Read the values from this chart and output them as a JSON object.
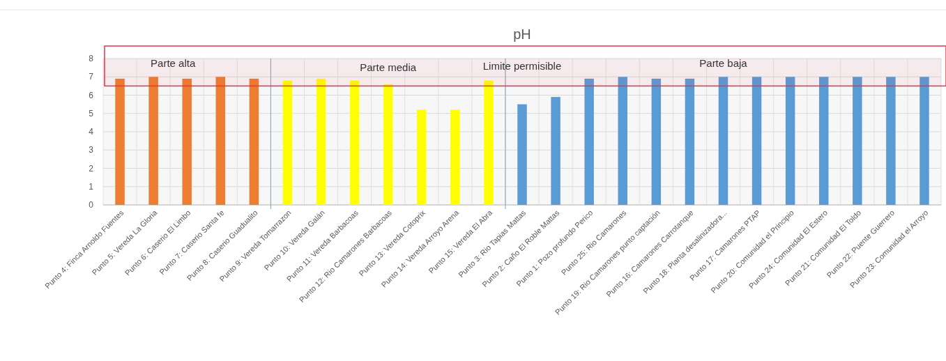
{
  "chart_data": {
    "type": "bar",
    "title": "pH",
    "categories": [
      "Punto 4: Finca Arnoldo Fuentes",
      "Punto 5: Vereda La Gloria",
      "Punto 6: Caserio El Limbo",
      "Punto 7: Caserio Santa fe",
      "Punto 8: Caserio Guadualito",
      "Punto 9: Vereda Tomarrazon",
      "Punto 10: Vereda Galán",
      "Punto 11: Vereda Barbacoas",
      "Punto 12: Rio Camarones Barbacoas",
      "Punto 13: Vereda Cotoprix",
      "Punto 14: Vereda Arroyo Arena",
      "Punto 15: Vereda El Abra",
      "Punto 3: Rio Tapias Mattas",
      "Punto 2: Caño El Roble Mattas",
      "Punto 1: Pozo profundo Perico",
      "Punto 25: Rio Camarones",
      "Punto 19: Rio Camarones punto captación",
      "Punto 16: Camarones Carrotanque",
      "Punto 18: Planta desalinizadora...",
      "Punto 17: Camarones PTAP",
      "Punto 20: Comunidad el Principio",
      "Punto 24: Comunidad El Estero",
      "Punto 21: Comunidad El Toldo",
      "Punto 22: Puente Guerrero",
      "Punto 23: Comunidad el Arroyo"
    ],
    "series": [
      {
        "color": "#ed7d31",
        "values": [
          6.9,
          7.0,
          6.9,
          7.0,
          6.9,
          null,
          null,
          null,
          null,
          null,
          null,
          null,
          null,
          null,
          null,
          null,
          null,
          null,
          null,
          null,
          null,
          null,
          null,
          null,
          null
        ]
      },
      {
        "color": "#ffff00",
        "values": [
          null,
          null,
          null,
          null,
          null,
          6.8,
          6.9,
          6.8,
          6.6,
          5.2,
          5.2,
          6.8,
          null,
          null,
          null,
          null,
          null,
          null,
          null,
          null,
          null,
          null,
          null,
          null,
          null
        ]
      },
      {
        "color": "#5b9bd5",
        "values": [
          null,
          null,
          null,
          null,
          null,
          null,
          null,
          null,
          null,
          null,
          null,
          null,
          5.5,
          5.9,
          6.9,
          7.0,
          6.9,
          6.9,
          7.0,
          7.0,
          7.0,
          7.0,
          7.0,
          7.0,
          7.0
        ]
      }
    ],
    "ylim": [
      0,
      8
    ],
    "yticks": [
      0,
      1,
      2,
      3,
      4,
      5,
      6,
      7,
      8
    ],
    "grid": true,
    "bands": [
      {
        "axis": "y",
        "from": 6.5,
        "to": 8,
        "label": "Limite permisible",
        "color": "#e8344a"
      }
    ],
    "annotations": [
      "Parte alta",
      "Parte media",
      "Parte baja"
    ]
  }
}
